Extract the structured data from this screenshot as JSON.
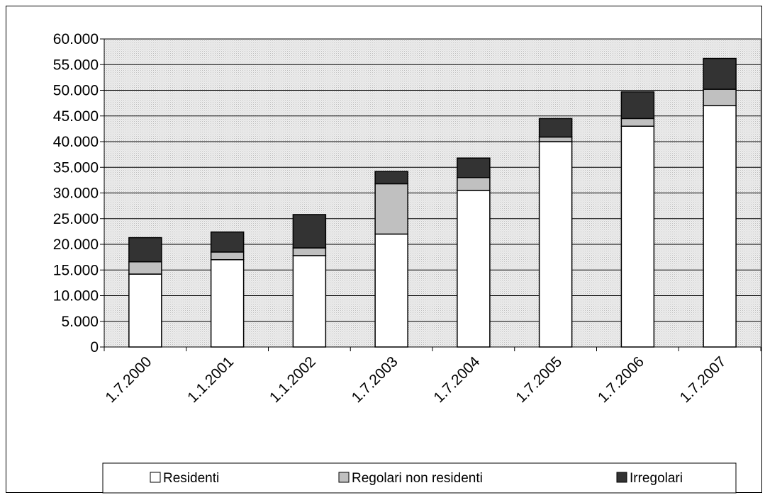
{
  "chart_data": {
    "type": "bar",
    "stacked": true,
    "categories": [
      "1.7.2000",
      "1.1.2001",
      "1.1.2002",
      "1.7.2003",
      "1.7.2004",
      "1.7.2005",
      "1.7.2006",
      "1.7.2007"
    ],
    "series": [
      {
        "name": "Residenti",
        "color": "#ffffff",
        "values": [
          14200,
          17000,
          17800,
          22000,
          30500,
          40000,
          43000,
          47000
        ]
      },
      {
        "name": "Regolari non residenti",
        "color": "#c0c0c0",
        "values": [
          2400,
          1500,
          1500,
          9800,
          2500,
          900,
          1500,
          3200
        ]
      },
      {
        "name": "Irregolari",
        "color": "#333333",
        "values": [
          4700,
          3900,
          6500,
          2400,
          3800,
          3600,
          5200,
          6000
        ]
      }
    ],
    "yticks": [
      "0",
      "5.000",
      "10.000",
      "15.000",
      "20.000",
      "25.000",
      "30.000",
      "35.000",
      "40.000",
      "45.000",
      "50.000",
      "55.000",
      "60.000"
    ],
    "ylim": [
      0,
      60000
    ],
    "grid": true,
    "legend_position": "bottom",
    "plot_background": "#d9d9d9",
    "title": "",
    "xlabel": "",
    "ylabel": ""
  }
}
